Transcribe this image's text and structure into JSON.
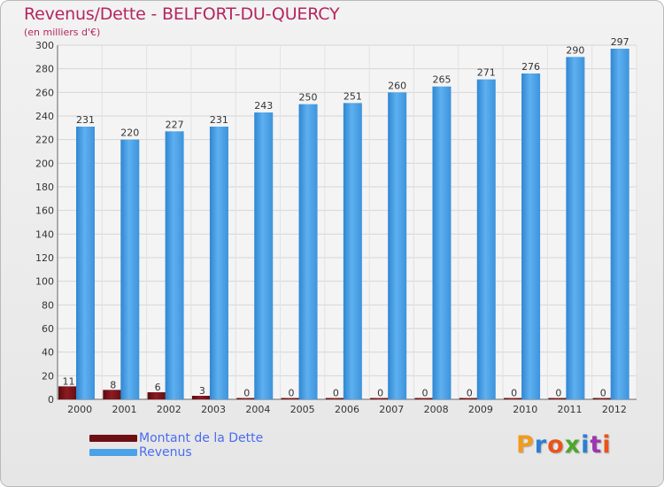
{
  "title": "Revenus/Dette - BELFORT-DU-QUERCY",
  "subtitle": "(en milliers d'€)",
  "brand": {
    "text": "Proxiti",
    "letter_colors": [
      "#f39a1e",
      "#2a7fd4",
      "#e8541c",
      "#4ea72a",
      "#2a7fd4",
      "#9b36b0",
      "#e8541c"
    ]
  },
  "colors": {
    "title": "#b5265f",
    "debt": "#6e0f14",
    "revenue": "#4aa2e8",
    "legend_text": "#4a6cf0"
  },
  "chart_data": {
    "type": "bar",
    "title": "Revenus/Dette - BELFORT-DU-QUERCY",
    "xlabel": "",
    "ylabel": "(en milliers d'€)",
    "ylim": [
      0,
      300
    ],
    "yticks": [
      0,
      20,
      40,
      60,
      80,
      100,
      120,
      140,
      160,
      180,
      200,
      220,
      240,
      260,
      280,
      300
    ],
    "categories": [
      "2000",
      "2001",
      "2002",
      "2003",
      "2004",
      "2005",
      "2006",
      "2007",
      "2008",
      "2009",
      "2010",
      "2011",
      "2012"
    ],
    "series": [
      {
        "name": "Montant de la Dette",
        "color": "#6e0f14",
        "values": [
          11,
          8,
          6,
          3,
          0,
          0,
          0,
          0,
          0,
          0,
          0,
          0,
          0
        ]
      },
      {
        "name": "Revenus",
        "color": "#4aa2e8",
        "values": [
          231,
          220,
          227,
          231,
          243,
          250,
          251,
          260,
          265,
          271,
          276,
          290,
          297
        ]
      }
    ],
    "grid": true,
    "legend": "bottom-left"
  }
}
